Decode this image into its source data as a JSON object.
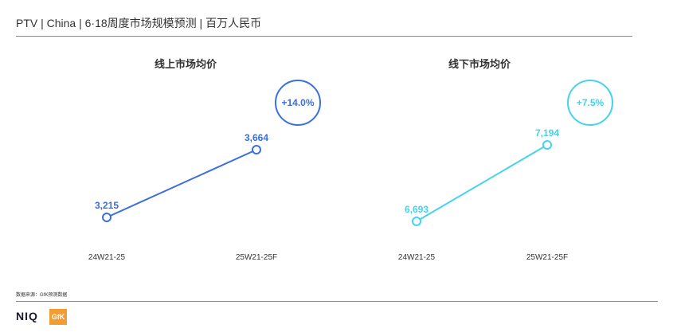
{
  "header": {
    "title": "PTV | China | 6·18周度市场规模预测 | 百万人民币"
  },
  "footer": {
    "source": "数据来源：GfK预测数据",
    "brand_niq": "NIQ",
    "brand_gfk": "GfK"
  },
  "colors": {
    "online": "#3a6fdc",
    "offline": "#45d3ec"
  },
  "chart_data": [
    {
      "type": "line",
      "title": "线上市场均价",
      "categories": [
        "24W21-25",
        "25W21-25F"
      ],
      "values": [
        3215,
        3664
      ],
      "data_labels": [
        "3,215",
        "3,664"
      ],
      "growth_badge": "+14.0%"
    },
    {
      "type": "line",
      "title": "线下市场均价",
      "categories": [
        "24W21-25",
        "25W21-25F"
      ],
      "values": [
        6693,
        7194
      ],
      "data_labels": [
        "6,693",
        "7,194"
      ],
      "growth_badge": "+7.5%"
    }
  ]
}
